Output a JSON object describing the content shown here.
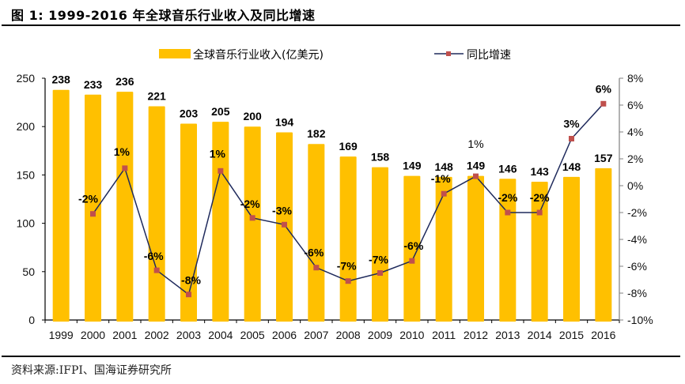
{
  "figure": {
    "title": "图 1:  1999-2016 年全球音乐行业收入及同比增速",
    "source": "资料来源:IFPI、国海证券研究所"
  },
  "chart_data": {
    "type": "bar",
    "title": "1999-2016 年全球音乐行业收入及同比增速",
    "categories": [
      "1999",
      "2000",
      "2001",
      "2002",
      "2003",
      "2004",
      "2005",
      "2006",
      "2007",
      "2008",
      "2009",
      "2010",
      "2011",
      "2012",
      "2013",
      "2014",
      "2015",
      "2016"
    ],
    "series": [
      {
        "name": "全球音乐行业收入(亿美元)",
        "type": "bar",
        "axis": "left",
        "color": "#FFC000",
        "values": [
          238,
          233,
          236,
          221,
          203,
          205,
          200,
          194,
          182,
          169,
          158,
          149,
          148,
          149,
          146,
          143,
          148,
          157
        ],
        "labels": [
          "238",
          "233",
          "236",
          "221",
          "203",
          "205",
          "200",
          "194",
          "182",
          "169",
          "158",
          "149",
          "148",
          "149",
          "146",
          "143",
          "148",
          "157"
        ]
      },
      {
        "name": "同比增速",
        "type": "line",
        "axis": "right",
        "line_color": "#1F2A5C",
        "marker_color": "#C0504D",
        "values": [
          null,
          -2.1,
          1.3,
          -6.3,
          -8.1,
          1.1,
          -2.4,
          -2.9,
          -6.1,
          -7.1,
          -6.5,
          -5.6,
          -0.6,
          0.7,
          -2.0,
          -2.0,
          3.5,
          6.1
        ],
        "labels": [
          null,
          "-2%",
          "1%",
          "-6%",
          "-8%",
          "1%",
          "-2%",
          "-3%",
          "-6%",
          "-7%",
          "-7%",
          "-6%",
          "-1%",
          "1%",
          "-2%",
          "-2%",
          "3%",
          "6%"
        ]
      }
    ],
    "y_left": {
      "min": 0,
      "max": 250,
      "ticks": [
        "0",
        "50",
        "100",
        "150",
        "200",
        "250"
      ]
    },
    "y_right": {
      "min": -10,
      "max": 8,
      "ticks": [
        "-10%",
        "-8%",
        "-6%",
        "-4%",
        "-2%",
        "0%",
        "2%",
        "4%",
        "6%",
        "8%"
      ]
    },
    "xlabel": "",
    "ylabel": "",
    "grid": false,
    "legend": {
      "position": "top-center",
      "entries": [
        "全球音乐行业收入(亿美元)",
        "同比增速"
      ]
    }
  }
}
